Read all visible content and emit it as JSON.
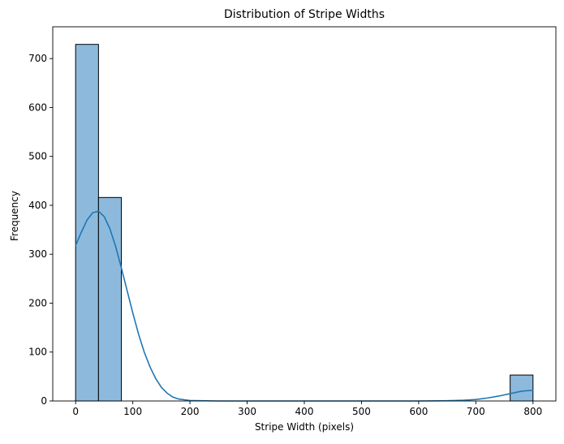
{
  "chart_data": {
    "type": "bar",
    "title": "Distribution of Stripe Widths",
    "xlabel": "Stripe Width (pixels)",
    "ylabel": "Frequency",
    "xlim": [
      -40,
      840
    ],
    "ylim": [
      0,
      765
    ],
    "xticks": [
      0,
      100,
      200,
      300,
      400,
      500,
      600,
      700,
      800
    ],
    "yticks": [
      0,
      100,
      200,
      300,
      400,
      500,
      600,
      700
    ],
    "grid": false,
    "bars": [
      {
        "x0": 0,
        "x1": 40,
        "value": 729
      },
      {
        "x0": 40,
        "x1": 80,
        "value": 416
      },
      {
        "x0": 760,
        "x1": 800,
        "value": 53
      }
    ],
    "bar_color": "#8dbadc",
    "bar_edge_color": "#000000",
    "kde": {
      "color": "#1f77b4",
      "x": [
        0,
        10,
        20,
        30,
        40,
        50,
        60,
        70,
        80,
        90,
        100,
        110,
        120,
        130,
        140,
        150,
        160,
        170,
        180,
        200,
        250,
        300,
        400,
        500,
        600,
        650,
        680,
        700,
        720,
        740,
        760,
        780,
        800
      ],
      "y": [
        318,
        345,
        370,
        385,
        388,
        377,
        352,
        316,
        272,
        226,
        180,
        137,
        100,
        70,
        46,
        28,
        16,
        8,
        4,
        1,
        0,
        0,
        0,
        0,
        0,
        0.5,
        1.5,
        3,
        6,
        10,
        15,
        20,
        22
      ]
    }
  }
}
